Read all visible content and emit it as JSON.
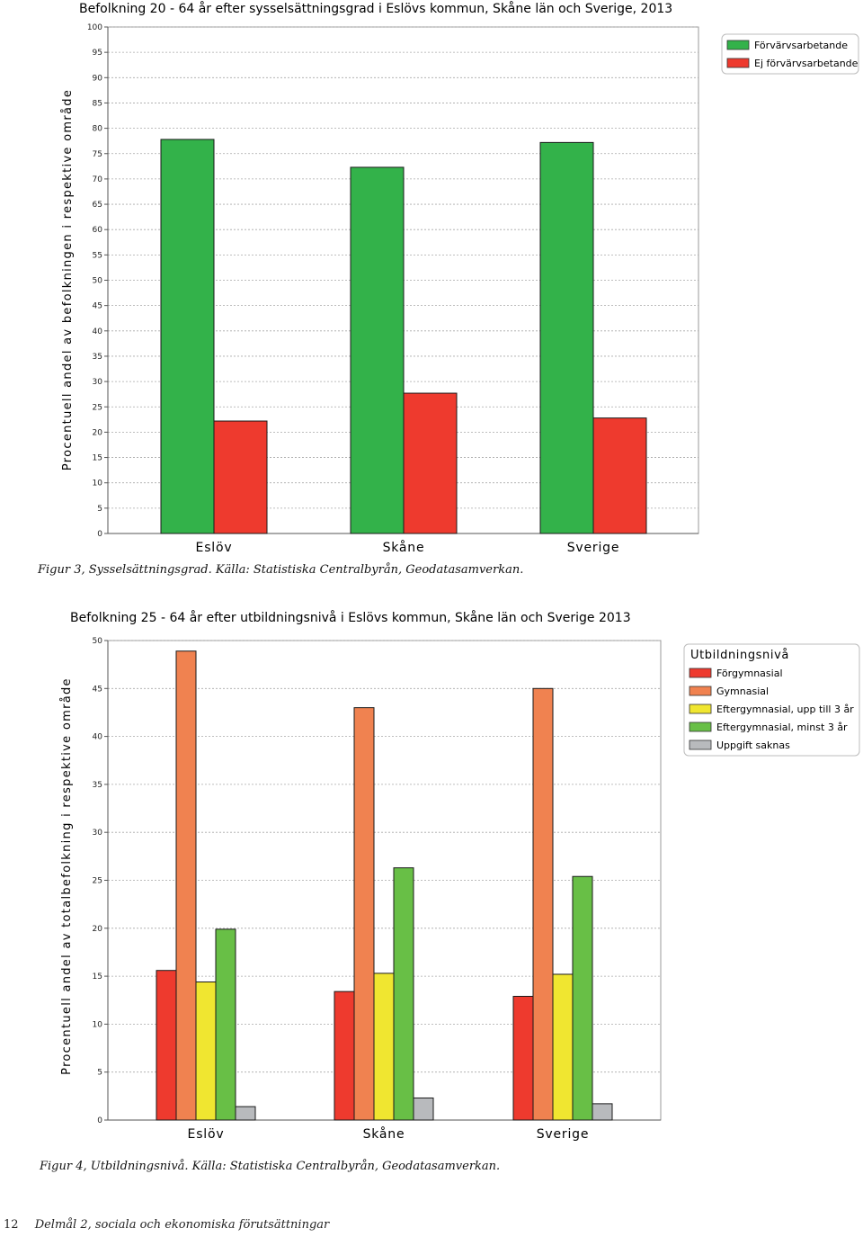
{
  "chart_data": [
    {
      "type": "bar",
      "title": "Befolkning 20 - 64 år efter sysselsättningsgrad i Eslövs kommun, Skåne län och Sverige, 2013",
      "ylabel": "Procentuell andel av befolkningen i respektive område",
      "xlabel": "",
      "ylim": [
        0,
        100
      ],
      "yticks": [
        0,
        5,
        10,
        15,
        20,
        25,
        30,
        35,
        40,
        45,
        50,
        55,
        60,
        65,
        70,
        75,
        80,
        85,
        90,
        95,
        100
      ],
      "grid": true,
      "legend_position": "top-right",
      "categories": [
        "Eslöv",
        "Skåne",
        "Sverige"
      ],
      "series": [
        {
          "name": "Förvärvsarbetande",
          "color": "#33b24a",
          "values": [
            77.8,
            72.3,
            77.2
          ]
        },
        {
          "name": "Ej förvärvsarbetande",
          "color": "#ee3a2e",
          "values": [
            22.2,
            27.7,
            22.8
          ]
        }
      ]
    },
    {
      "type": "bar",
      "title": "Befolkning 25 - 64 år efter utbildningsnivå i Eslövs kommun, Skåne län och Sverige 2013",
      "ylabel": "Procentuell andel av totalbefolkning i respektive område",
      "xlabel": "",
      "ylim": [
        0,
        50
      ],
      "yticks": [
        0,
        5,
        10,
        15,
        20,
        25,
        30,
        35,
        40,
        45,
        50
      ],
      "grid": true,
      "legend_position": "top-right",
      "legend_title": "Utbildningsnivå",
      "categories": [
        "Eslöv",
        "Skåne",
        "Sverige"
      ],
      "series": [
        {
          "name": "Förgymnasial",
          "color": "#ee3a2e",
          "values": [
            15.6,
            13.4,
            12.9
          ]
        },
        {
          "name": "Gymnasial",
          "color": "#f08250",
          "values": [
            48.9,
            43.0,
            45.0
          ]
        },
        {
          "name": "Eftergymnasial, upp till 3 år",
          "color": "#f0e630",
          "values": [
            14.4,
            15.3,
            15.2
          ]
        },
        {
          "name": "Eftergymnasial, minst 3 år",
          "color": "#68bf46",
          "values": [
            19.9,
            26.3,
            25.4
          ]
        },
        {
          "name": "Uppgift saknas",
          "color": "#b8babd",
          "values": [
            1.4,
            2.3,
            1.7
          ]
        }
      ]
    }
  ],
  "captions": {
    "figure3": "Figur 3, Sysselsättningsgrad. Källa: Statistiska Centralbyrån, Geodatasamverkan.",
    "figure4": "Figur 4, Utbildningsnivå. Källa: Statistiska Centralbyrån, Geodatasamverkan."
  },
  "footer": {
    "page_number": "12",
    "section": "Delmål 2, sociala och ekonomiska förutsättningar"
  }
}
